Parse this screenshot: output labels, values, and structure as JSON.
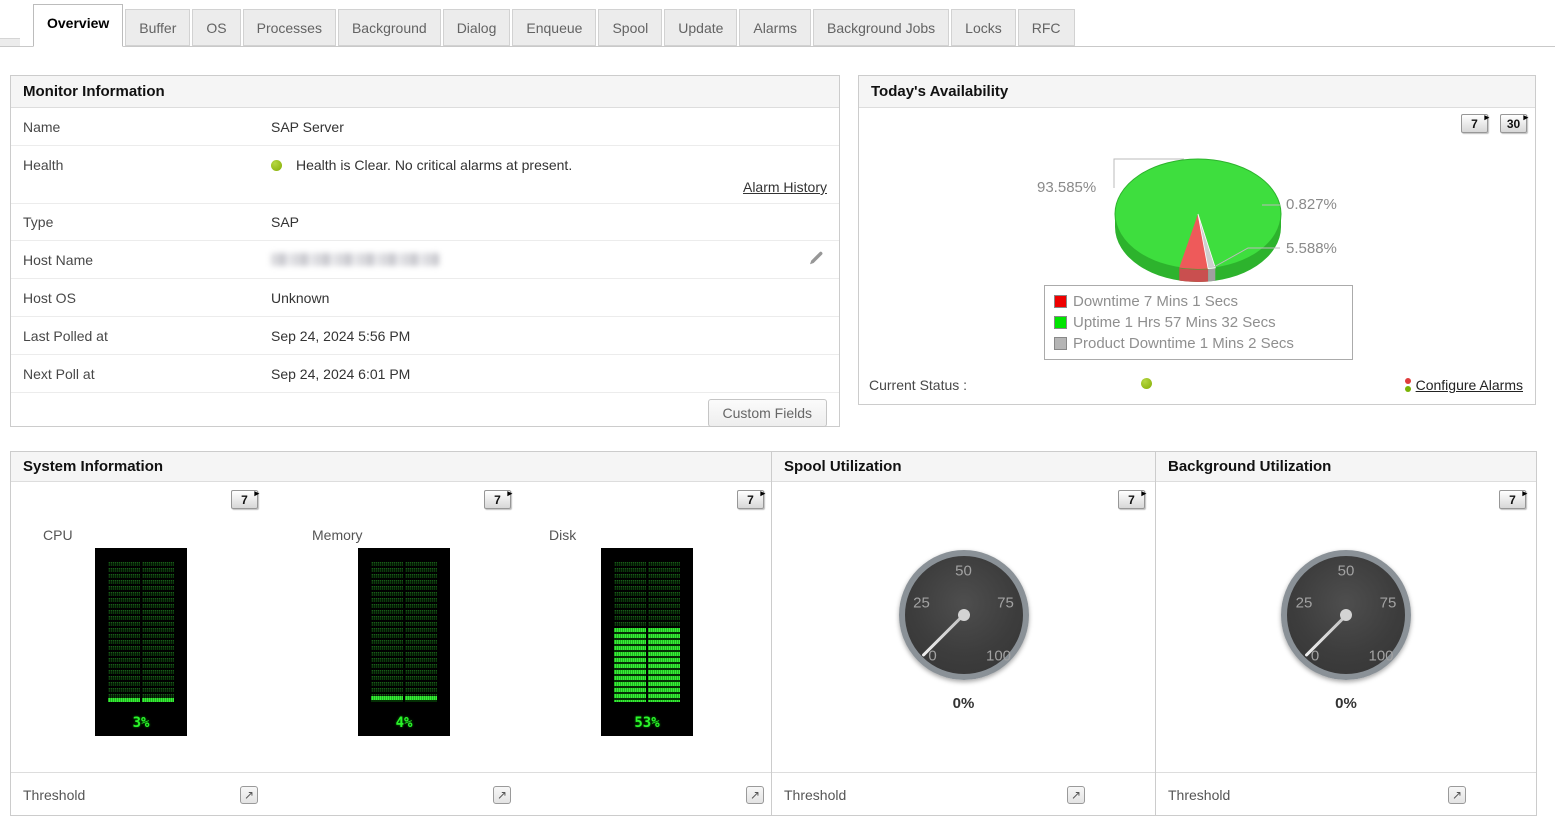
{
  "tab_bar": {
    "tabs": [
      "Overview",
      "Buffer",
      "OS",
      "Processes",
      "Background",
      "Dialog",
      "Enqueue",
      "Spool",
      "Update",
      "Alarms",
      "Background Jobs",
      "Locks",
      "RFC"
    ],
    "active_tab": "Overview"
  },
  "monitor_info": {
    "title": "Monitor Information",
    "name_label": "Name",
    "name_value": "SAP Server",
    "health_label": "Health",
    "health_text": "Health is Clear. No critical alarms at present.",
    "alarm_history_link": "Alarm History",
    "type_label": "Type",
    "type_value": "SAP",
    "host_name_label": "Host Name",
    "host_os_label": "Host OS",
    "host_os_value": "Unknown",
    "last_polled_label": "Last Polled at",
    "last_polled_value": "Sep 24, 2024 5:56 PM",
    "next_poll_label": "Next Poll at",
    "next_poll_value": "Sep 24, 2024 6:01 PM",
    "custom_fields_button": "Custom Fields"
  },
  "availability": {
    "title": "Today's Availability",
    "button_7": "7",
    "button_30": "30",
    "uptime_pct_label": "93.585%",
    "product_downtime_pct_label": "0.827%",
    "downtime_pct_label": "5.588%",
    "legend": [
      {
        "label": "Downtime 7 Mins 1 Secs",
        "color": "#ee0000"
      },
      {
        "label": "Uptime 1 Hrs 57 Mins 32 Secs",
        "color": "#00e400"
      },
      {
        "label": "Product Downtime 1 Mins 2 Secs",
        "color": "#b5b5b5"
      }
    ],
    "current_status_label": "Current Status :",
    "configure_alarms_link": "Configure Alarms",
    "status_color": "#8db50a"
  },
  "system_info": {
    "title": "System Information",
    "period_button": "7",
    "threshold_label": "Threshold",
    "gauges": [
      {
        "label": "CPU",
        "value": 3,
        "display": "3%"
      },
      {
        "label": "Memory",
        "value": 4,
        "display": "4%"
      },
      {
        "label": "Disk",
        "value": 53,
        "display": "53%"
      }
    ]
  },
  "spool": {
    "title": "Spool Utilization",
    "period_button": "7",
    "threshold_label": "Threshold",
    "value": 0,
    "display": "0%",
    "ticks": [
      "0",
      "25",
      "50",
      "75",
      "100"
    ]
  },
  "background_util": {
    "title": "Background Utilization",
    "period_button": "7",
    "threshold_label": "Threshold",
    "value": 0,
    "display": "0%",
    "ticks": [
      "0",
      "25",
      "50",
      "75",
      "100"
    ]
  },
  "icons": {
    "threshold_link": "↗"
  },
  "chart_data": [
    {
      "type": "pie",
      "title": "Today's Availability",
      "slices": [
        {
          "label": "Uptime 1 Hrs 57 Mins 32 Secs",
          "value": 93.585,
          "display": "93.585%",
          "color": "#3ede3e"
        },
        {
          "label": "Downtime 7 Mins 1 Secs",
          "value": 5.588,
          "display": "5.588%",
          "color": "#ee5a5a"
        },
        {
          "label": "Product Downtime 1 Mins 2 Secs",
          "value": 0.827,
          "display": "0.827%",
          "color": "#cfcfcf"
        }
      ],
      "legend_position": "below"
    },
    {
      "type": "bar",
      "title": "System Information",
      "categories": [
        "CPU",
        "Memory",
        "Disk"
      ],
      "values": [
        3,
        4,
        53
      ],
      "unit": "%",
      "ylim": [
        0,
        100
      ]
    },
    {
      "type": "gauge",
      "title": "Spool Utilization",
      "value": 0,
      "unit": "%",
      "ticks": [
        0,
        25,
        50,
        75,
        100
      ]
    },
    {
      "type": "gauge",
      "title": "Background Utilization",
      "value": 0,
      "unit": "%",
      "ticks": [
        0,
        25,
        50,
        75,
        100
      ]
    }
  ]
}
